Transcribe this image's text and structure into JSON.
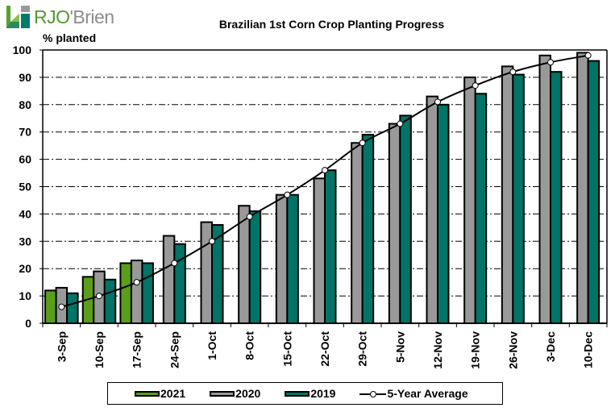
{
  "logo": {
    "brand_primary": "RJO",
    "brand_secondary": "'Brien",
    "colors": {
      "green": "#4f9a2e",
      "teal": "#007a6a",
      "gray": "#8c8c8c"
    }
  },
  "chart_data": {
    "type": "bar",
    "title": "Brazilian 1st Corn Crop Planting Progress",
    "xlabel": "",
    "ylabel": "% planted",
    "ylim": [
      0,
      100
    ],
    "yticks": [
      0,
      10,
      20,
      30,
      40,
      50,
      60,
      70,
      80,
      90,
      100
    ],
    "grid": "horizontal dash-dot",
    "legend_position": "bottom",
    "categories": [
      "3-Sep",
      "10-Sep",
      "17-Sep",
      "24-Sep",
      "1-Oct",
      "8-Oct",
      "15-Oct",
      "22-Oct",
      "29-Oct",
      "5-Nov",
      "12-Nov",
      "19-Nov",
      "26-Nov",
      "3-Dec",
      "10-Dec"
    ],
    "series": [
      {
        "name": "2021",
        "type": "bar",
        "color": "#5a9e1a",
        "values": [
          12,
          17,
          22,
          null,
          null,
          null,
          null,
          null,
          null,
          null,
          null,
          null,
          null,
          null,
          null
        ]
      },
      {
        "name": "2020",
        "type": "bar",
        "color": "#999999",
        "values": [
          13,
          19,
          23,
          32,
          37,
          43,
          47,
          53,
          66,
          73,
          83,
          90,
          94,
          98,
          99
        ]
      },
      {
        "name": "2019",
        "type": "bar",
        "color": "#007466",
        "values": [
          11,
          16,
          22,
          29,
          36,
          41,
          47,
          56,
          69,
          76,
          80,
          84,
          91,
          92,
          96
        ]
      },
      {
        "name": "5-Year Average",
        "type": "line",
        "color": "#000000",
        "values": [
          6,
          10,
          15,
          22,
          30,
          39,
          47,
          56,
          66,
          73,
          81,
          87,
          92,
          95.5,
          98
        ]
      }
    ]
  }
}
